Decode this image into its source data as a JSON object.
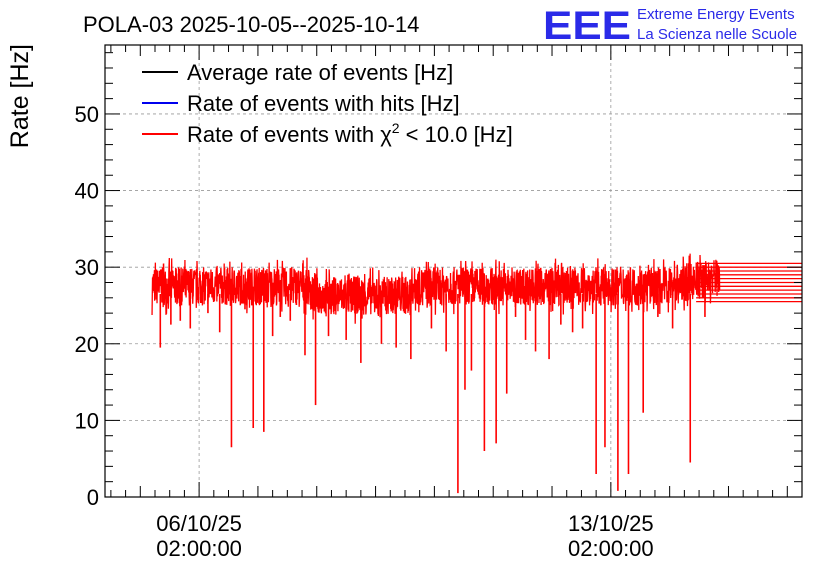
{
  "chart_data": {
    "type": "line",
    "title": "POLA-03 2025-10-05--2025-10-14",
    "ylabel": "Rate [Hz]",
    "xlabel": "",
    "ylim": [
      0,
      59
    ],
    "y_ticks": [
      0,
      10,
      20,
      30,
      40,
      50
    ],
    "x_range_days": [
      -0.6,
      11.25
    ],
    "x_ticks": [
      {
        "day": 1,
        "date": "06/10/25",
        "time": "02:00:00"
      },
      {
        "day": 8,
        "date": "13/10/25",
        "time": "02:00:00"
      }
    ],
    "grid": true,
    "legend_position": "top-left",
    "logo": {
      "text": "EEE",
      "line1": "Extreme Energy Events",
      "line2": "La Scienza nelle Scuole"
    },
    "series": [
      {
        "name": "Average rate of events [Hz]",
        "legend_prefix": "Average rate of events [Hz]",
        "legend_sup": "",
        "legend_suffix": "",
        "color": "#000000"
      },
      {
        "name": "Rate of events with hits [Hz]",
        "legend_prefix": "Rate of events with hits [Hz]",
        "legend_sup": "",
        "legend_suffix": "",
        "color": "#0000ee"
      },
      {
        "name": "Rate of events with χ2 < 10.0 [Hz]",
        "legend_prefix": "Rate of events with χ",
        "legend_sup": "2",
        "legend_suffix": " < 10.0 [Hz]",
        "color": "#ff0000",
        "start_day": 0.2,
        "end_day": 9.85,
        "baseline_hz": 27.5,
        "band_low_hz": 25.5,
        "band_high_hz": 30.5,
        "end_segment_days": [
          9.85,
          11.25
        ],
        "end_segment_values_hz": [
          25.5,
          26.0,
          26.5,
          27.0,
          27.5,
          28.0,
          28.5,
          29.0,
          29.5,
          30.0,
          30.5
        ],
        "dips": [
          {
            "day": 0.34,
            "value": 19.5
          },
          {
            "day": 0.52,
            "value": 22.5
          },
          {
            "day": 0.68,
            "value": 23.0
          },
          {
            "day": 0.85,
            "value": 22.0
          },
          {
            "day": 1.15,
            "value": 24.0
          },
          {
            "day": 1.35,
            "value": 21.5
          },
          {
            "day": 1.55,
            "value": 6.5
          },
          {
            "day": 1.78,
            "value": 24.5
          },
          {
            "day": 1.92,
            "value": 9.0
          },
          {
            "day": 2.1,
            "value": 8.5
          },
          {
            "day": 2.25,
            "value": 21.0
          },
          {
            "day": 2.38,
            "value": 23.5
          },
          {
            "day": 2.55,
            "value": 23.0
          },
          {
            "day": 2.8,
            "value": 18.5
          },
          {
            "day": 2.98,
            "value": 12.0
          },
          {
            "day": 3.2,
            "value": 21.0
          },
          {
            "day": 3.5,
            "value": 20.5
          },
          {
            "day": 3.75,
            "value": 17.5
          },
          {
            "day": 4.1,
            "value": 20.0
          },
          {
            "day": 4.35,
            "value": 19.5
          },
          {
            "day": 4.6,
            "value": 18.0
          },
          {
            "day": 4.95,
            "value": 22.0
          },
          {
            "day": 5.2,
            "value": 19.0
          },
          {
            "day": 5.4,
            "value": 0.5
          },
          {
            "day": 5.52,
            "value": 14.0
          },
          {
            "day": 5.63,
            "value": 16.5
          },
          {
            "day": 5.85,
            "value": 6.0
          },
          {
            "day": 6.05,
            "value": 7.0
          },
          {
            "day": 6.23,
            "value": 13.5
          },
          {
            "day": 6.38,
            "value": 23.5
          },
          {
            "day": 6.55,
            "value": 20.5
          },
          {
            "day": 6.72,
            "value": 19.0
          },
          {
            "day": 6.95,
            "value": 18.0
          },
          {
            "day": 7.15,
            "value": 22.5
          },
          {
            "day": 7.35,
            "value": 21.5
          },
          {
            "day": 7.52,
            "value": 22.0
          },
          {
            "day": 7.75,
            "value": 3.0
          },
          {
            "day": 7.9,
            "value": 6.5
          },
          {
            "day": 8.12,
            "value": 0.8
          },
          {
            "day": 8.3,
            "value": 3.0
          },
          {
            "day": 8.55,
            "value": 11.0
          },
          {
            "day": 8.8,
            "value": 23.5
          },
          {
            "day": 9.05,
            "value": 22.0
          },
          {
            "day": 9.35,
            "value": 4.5
          },
          {
            "day": 9.6,
            "value": 23.5
          }
        ]
      }
    ]
  }
}
